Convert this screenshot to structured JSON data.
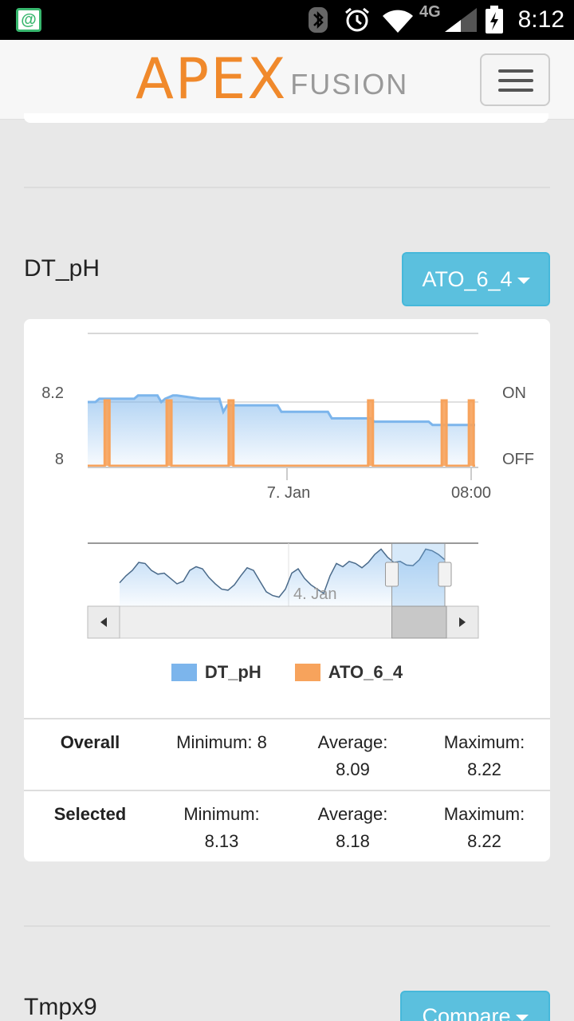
{
  "status_bar": {
    "notification_glyph": "@",
    "network_label": "4G",
    "time": "8:12"
  },
  "header": {
    "logo_primary": "APEX",
    "logo_secondary": "FUSION",
    "logo_color": "#f0892b"
  },
  "sections": [
    {
      "title": "DT_pH",
      "dropdown_label": "ATO_6_4",
      "legend": [
        {
          "name": "DT_pH",
          "color": "#7cb5ec"
        },
        {
          "name": "ATO_6_4",
          "color": "#f7a35c"
        }
      ],
      "stats": {
        "overall": {
          "label": "Overall",
          "minimum_label": "Minimum:",
          "minimum": "8",
          "average_label": "Average:",
          "average": "8.09",
          "maximum_label": "Maximum:",
          "maximum": "8.22"
        },
        "selected": {
          "label": "Selected",
          "minimum_label": "Minimum:",
          "minimum": "8.13",
          "average_label": "Average:",
          "average": "8.18",
          "maximum_label": "Maximum:",
          "maximum": "8.22"
        }
      }
    },
    {
      "title": "Tmpx9",
      "dropdown_label": "Compare"
    }
  ],
  "chart_data": {
    "type": "line",
    "x_tick_labels": [
      "7. Jan",
      "08:00"
    ],
    "y_left_ticks": [
      "8.2",
      "8"
    ],
    "y_left_range": [
      8,
      8.2
    ],
    "y_right_ticks": [
      "ON",
      "OFF"
    ],
    "navigator_tick_label": "4. Jan",
    "series": [
      {
        "name": "DT_pH",
        "kind": "area",
        "color": "#7cb5ec",
        "x": [
          0,
          0.02,
          0.03,
          0.12,
          0.13,
          0.18,
          0.19,
          0.2,
          0.22,
          0.23,
          0.29,
          0.34,
          0.35,
          0.36,
          0.37,
          0.49,
          0.5,
          0.62,
          0.63,
          0.66,
          0.67,
          0.73,
          0.74,
          0.88,
          0.89,
          1.0
        ],
        "values": [
          8.2,
          8.2,
          8.21,
          8.21,
          8.22,
          8.22,
          8.2,
          8.21,
          8.22,
          8.22,
          8.21,
          8.21,
          8.17,
          8.19,
          8.19,
          8.19,
          8.17,
          8.17,
          8.15,
          8.15,
          8.15,
          8.15,
          8.14,
          8.14,
          8.13,
          8.13
        ]
      },
      {
        "name": "ATO_6_4",
        "kind": "step",
        "color": "#f7a35c",
        "on_at": [
          0.05,
          0.21,
          0.37,
          0.73,
          0.92,
          0.99
        ]
      }
    ],
    "navigator": {
      "values": [
        0.32,
        0.45,
        0.55,
        0.7,
        0.68,
        0.55,
        0.48,
        0.5,
        0.4,
        0.3,
        0.35,
        0.55,
        0.62,
        0.58,
        0.42,
        0.3,
        0.2,
        0.18,
        0.28,
        0.45,
        0.6,
        0.55,
        0.35,
        0.15,
        0.08,
        0.05,
        0.2,
        0.5,
        0.58,
        0.4,
        0.28,
        0.2,
        0.12,
        0.45,
        0.68,
        0.62,
        0.72,
        0.68,
        0.6,
        0.7,
        0.85,
        0.95,
        0.8,
        0.7,
        0.72,
        0.65,
        0.64,
        0.75,
        0.95,
        0.92,
        0.85,
        0.75
      ],
      "selected_range": [
        0.837,
        1.0
      ]
    }
  }
}
